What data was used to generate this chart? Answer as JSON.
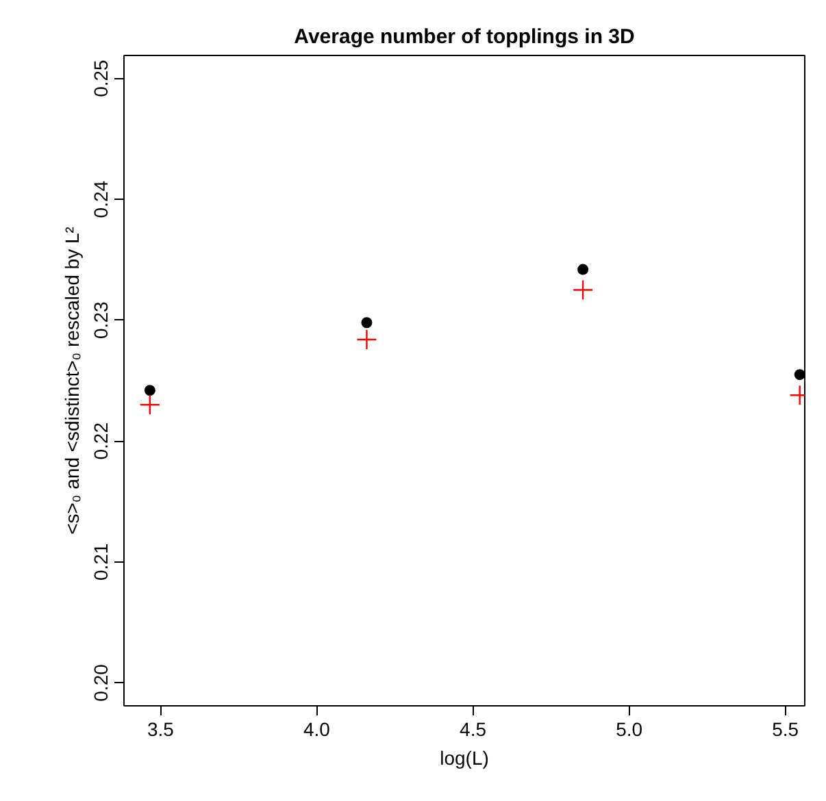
{
  "chart_data": {
    "type": "scatter",
    "title": "Average number of topplings in 3D",
    "xlabel": "log(L)",
    "ylabel": "<s>₀ and <sdistinct>₀ rescaled by L²",
    "x": [
      3.466,
      4.16,
      4.852,
      5.546
    ],
    "series": [
      {
        "color": "#000000",
        "marker": "circle",
        "values": [
          0.2242,
          0.2298,
          0.2342,
          0.2255
        ]
      },
      {
        "color": "#ff0000",
        "marker": "cross",
        "values": [
          0.223,
          0.2284,
          0.2325,
          0.2238
        ]
      }
    ],
    "xlim": [
      3.383,
      5.562
    ],
    "ylim": [
      0.1981,
      0.2519
    ],
    "xticks": [
      {
        "value": 3.5,
        "label": "3.5"
      },
      {
        "value": 4.0,
        "label": "4.0"
      },
      {
        "value": 4.5,
        "label": "4.5"
      },
      {
        "value": 5.0,
        "label": "5.0"
      },
      {
        "value": 5.5,
        "label": "5.5"
      }
    ],
    "yticks": [
      {
        "value": 0.2,
        "label": "0.20"
      },
      0.21,
      0.22,
      0.23,
      0.24,
      0.25
    ],
    "grid": false
  }
}
